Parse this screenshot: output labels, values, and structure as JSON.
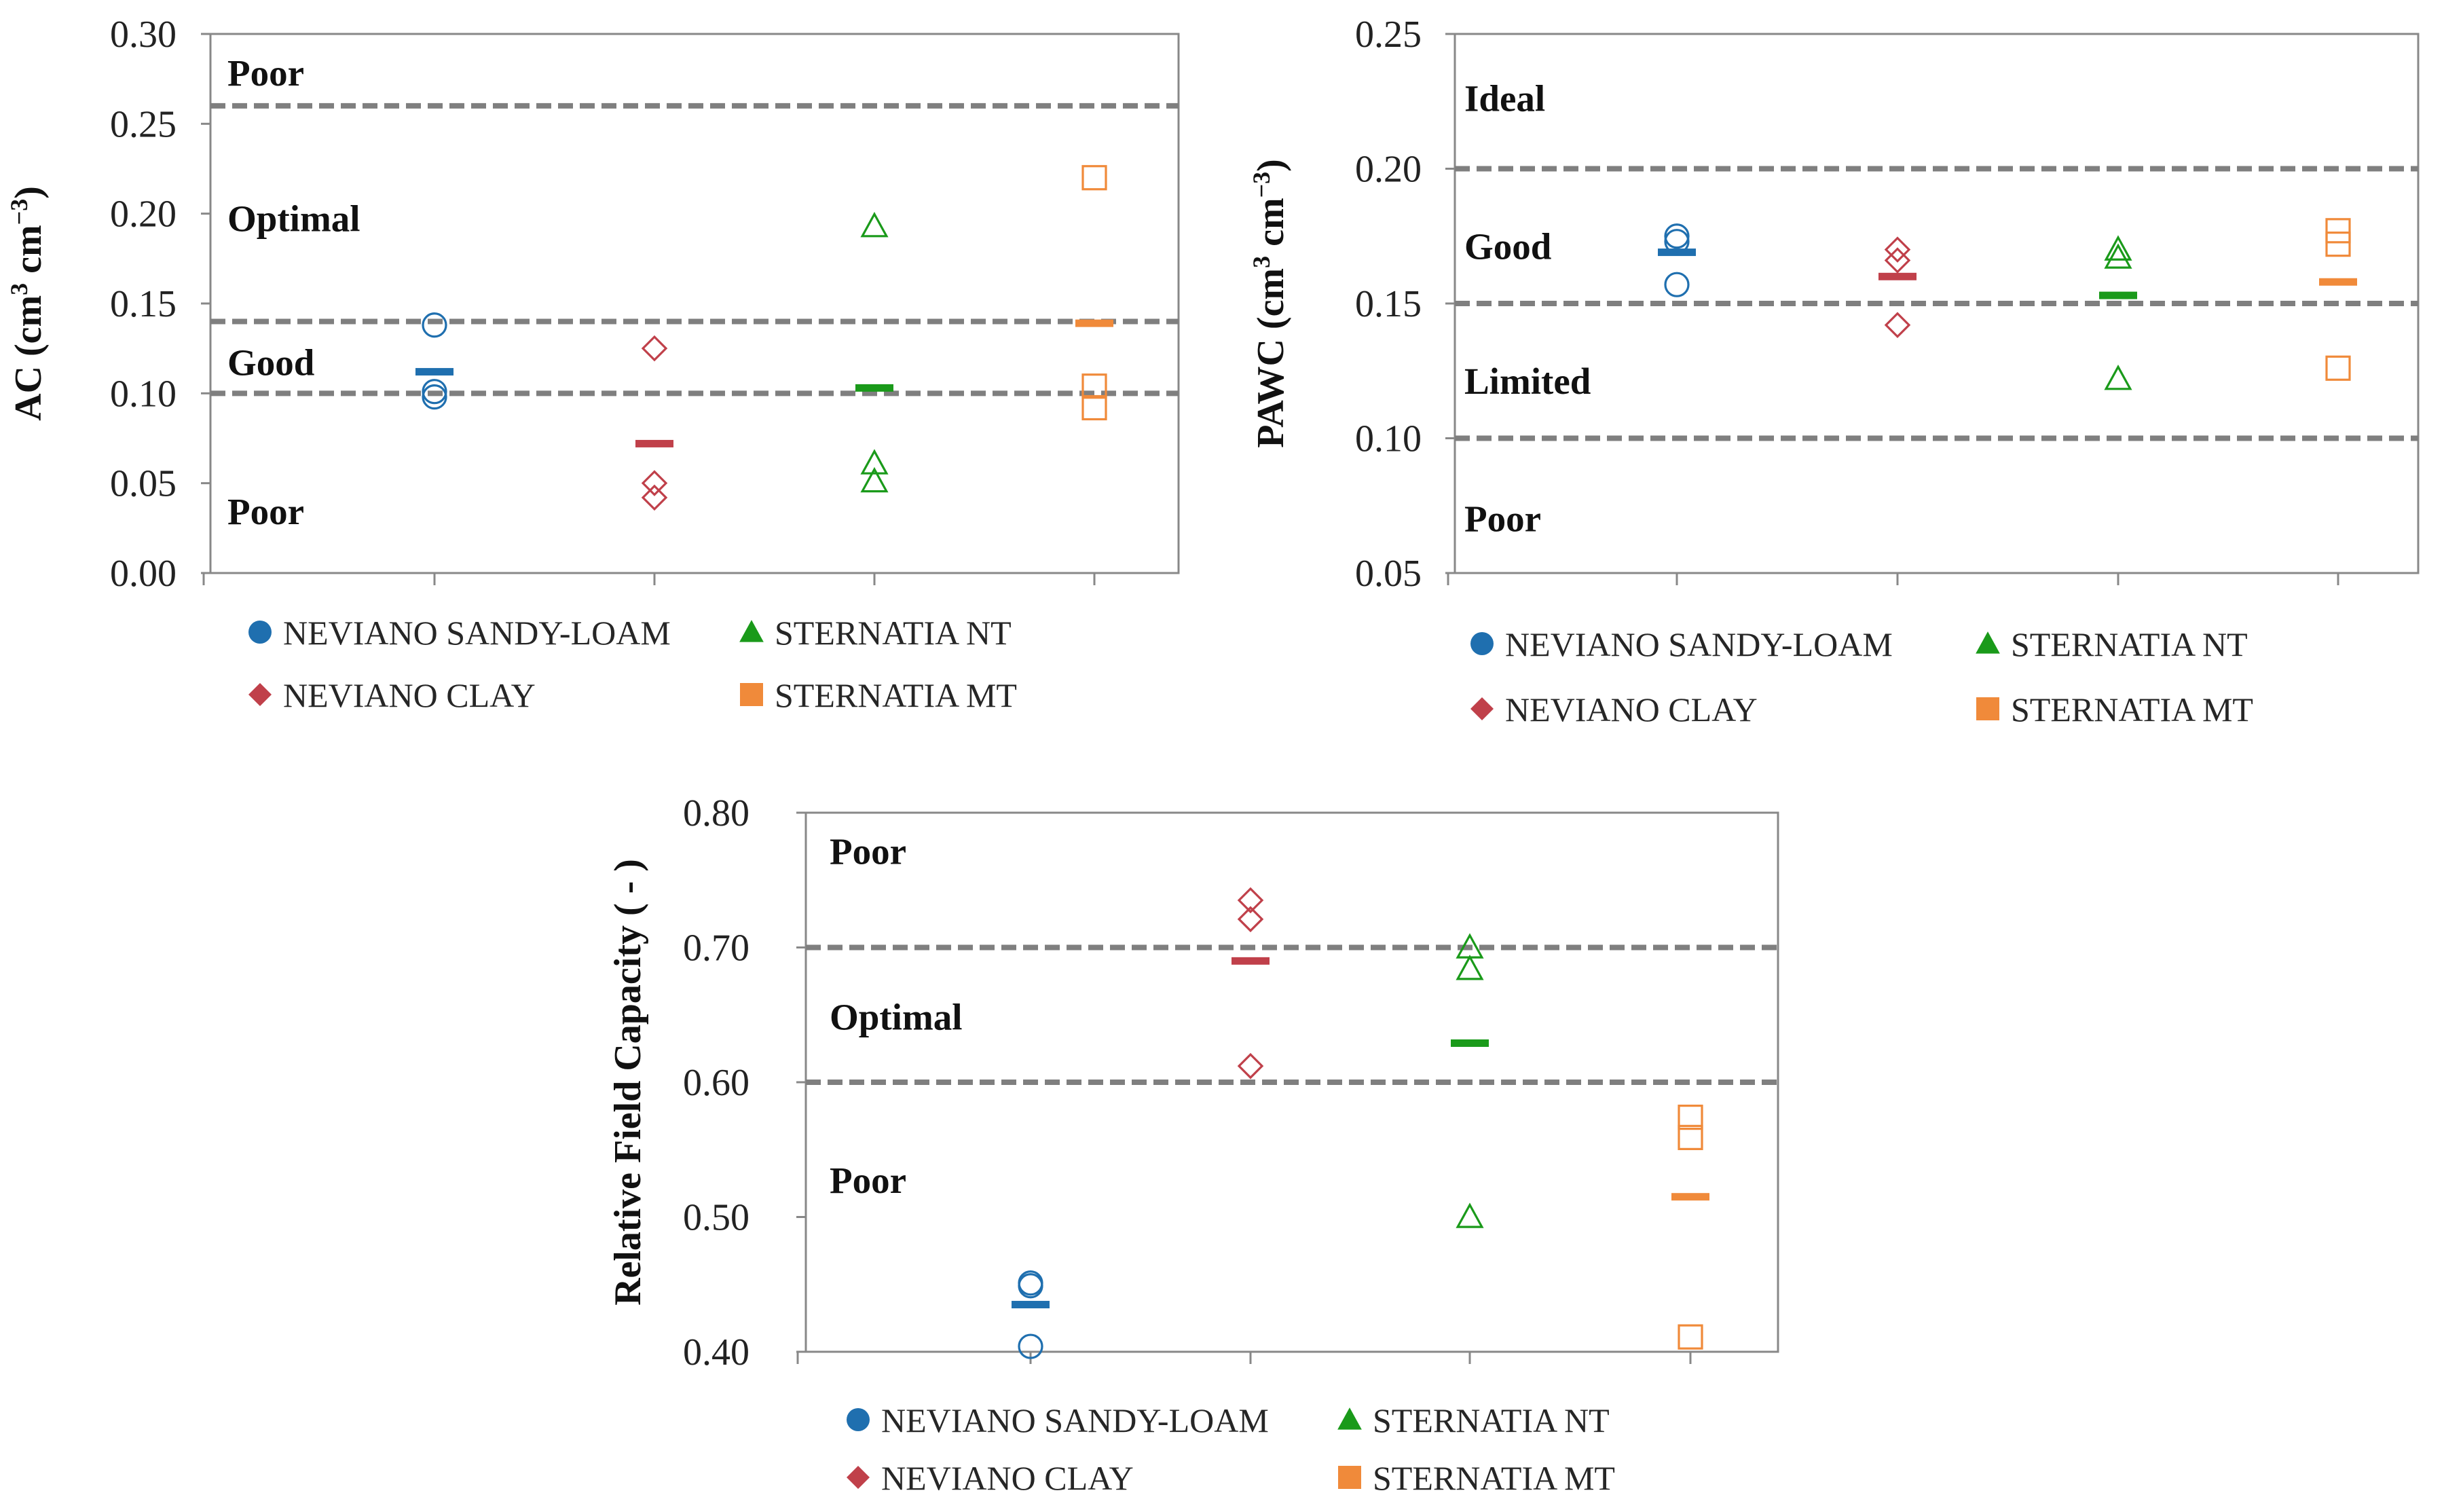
{
  "figure": {
    "colors": {
      "neviano_sandy_loam": "#1f6faf",
      "neviano_clay": "#c0404a",
      "sternatia_nt": "#1a9a1a",
      "sternatia_mt": "#f08a3a",
      "threshold": "#7f7f7f",
      "frame": "#888888"
    }
  },
  "chart_data": [
    {
      "id": "ac",
      "type": "scatter",
      "ylabel": "AC (cm³ cm⁻³)",
      "ylabel_parts": {
        "base": "AC (cm",
        "sup1": "3",
        "mid": " cm",
        "sup2": "−3",
        "end": ")"
      },
      "ylim": [
        0.0,
        0.3
      ],
      "ticks": [
        0.0,
        0.05,
        0.1,
        0.15,
        0.2,
        0.25,
        0.3
      ],
      "tick_labels": [
        "0.00",
        "0.05",
        "0.10",
        "0.15",
        "0.20",
        "0.25",
        "0.30"
      ],
      "categories": [
        "NEVIANO SANDY-LOAM",
        "NEVIANO CLAY",
        "STERNATIA NT",
        "STERNATIA MT"
      ],
      "thresholds": [
        0.26,
        0.14,
        0.1
      ],
      "zones": [
        {
          "label": "Poor",
          "y": 0.278
        },
        {
          "label": "Optimal",
          "y": 0.197
        },
        {
          "label": "Good",
          "y": 0.117
        },
        {
          "label": "Poor",
          "y": 0.034
        }
      ],
      "series": [
        {
          "name": "NEVIANO SANDY-LOAM",
          "marker": "circle",
          "color": "#1f6faf",
          "values": [
            0.138,
            0.101,
            0.098
          ],
          "mean": 0.112
        },
        {
          "name": "NEVIANO CLAY",
          "marker": "diamond",
          "color": "#c0404a",
          "values": [
            0.125,
            0.05,
            0.042
          ],
          "mean": 0.072
        },
        {
          "name": "STERNATIA NT",
          "marker": "triangle",
          "color": "#1a9a1a",
          "values": [
            0.193,
            0.061,
            0.051
          ],
          "mean": 0.103
        },
        {
          "name": "STERNATIA MT",
          "marker": "square",
          "color": "#f08a3a",
          "values": [
            0.22,
            0.104,
            0.092
          ],
          "mean": 0.139
        }
      ],
      "legend": [
        {
          "name": "NEVIANO SANDY-LOAM",
          "marker": "circle",
          "color": "#1f6faf"
        },
        {
          "name": "STERNATIA NT",
          "marker": "triangle",
          "color": "#1a9a1a"
        },
        {
          "name": "NEVIANO CLAY",
          "marker": "diamond",
          "color": "#c0404a"
        },
        {
          "name": "STERNATIA MT",
          "marker": "square",
          "color": "#f08a3a"
        }
      ]
    },
    {
      "id": "pawc",
      "type": "scatter",
      "ylabel": "PAWC (cm³ cm⁻³)",
      "ylabel_parts": {
        "base": "PAWC (cm",
        "sup1": "3",
        "mid": " cm",
        "sup2": "−3",
        "end": ")"
      },
      "ylim": [
        0.05,
        0.25
      ],
      "ticks": [
        0.05,
        0.1,
        0.15,
        0.2,
        0.25
      ],
      "tick_labels": [
        "0.05",
        "0.10",
        "0.15",
        "0.20",
        "0.25"
      ],
      "categories": [
        "NEVIANO SANDY-LOAM",
        "NEVIANO CLAY",
        "STERNATIA NT",
        "STERNATIA MT"
      ],
      "thresholds": [
        0.2,
        0.15,
        0.1
      ],
      "zones": [
        {
          "label": "Ideal",
          "y": 0.226
        },
        {
          "label": "Good",
          "y": 0.171
        },
        {
          "label": "Limited",
          "y": 0.121
        },
        {
          "label": "Poor",
          "y": 0.07
        }
      ],
      "series": [
        {
          "name": "NEVIANO SANDY-LOAM",
          "marker": "circle",
          "color": "#1f6faf",
          "values": [
            0.175,
            0.173,
            0.157
          ],
          "mean": 0.169
        },
        {
          "name": "NEVIANO CLAY",
          "marker": "diamond",
          "color": "#c0404a",
          "values": [
            0.17,
            0.166,
            0.142
          ],
          "mean": 0.16
        },
        {
          "name": "STERNATIA NT",
          "marker": "triangle",
          "color": "#1a9a1a",
          "values": [
            0.17,
            0.167,
            0.122
          ],
          "mean": 0.153
        },
        {
          "name": "STERNATIA MT",
          "marker": "square",
          "color": "#f08a3a",
          "values": [
            0.177,
            0.172,
            0.126
          ],
          "mean": 0.158
        }
      ],
      "legend": [
        {
          "name": "NEVIANO SANDY-LOAM",
          "marker": "circle",
          "color": "#1f6faf"
        },
        {
          "name": "STERNATIA NT",
          "marker": "triangle",
          "color": "#1a9a1a"
        },
        {
          "name": "NEVIANO CLAY",
          "marker": "diamond",
          "color": "#c0404a"
        },
        {
          "name": "STERNATIA MT",
          "marker": "square",
          "color": "#f08a3a"
        }
      ]
    },
    {
      "id": "rfc",
      "type": "scatter",
      "ylabel": "Relative Field Capacity ( - )",
      "ylabel_parts": {
        "base": "Relative Field Capacity ( - )",
        "sup1": "",
        "mid": "",
        "sup2": "",
        "end": ""
      },
      "ylim": [
        0.4,
        0.8
      ],
      "ticks": [
        0.4,
        0.5,
        0.6,
        0.7,
        0.8
      ],
      "tick_labels": [
        "0.40",
        "0.50",
        "0.60",
        "0.70",
        "0.80"
      ],
      "categories": [
        "NEVIANO SANDY-LOAM",
        "NEVIANO CLAY",
        "STERNATIA NT",
        "STERNATIA MT"
      ],
      "thresholds": [
        0.7,
        0.6
      ],
      "zones": [
        {
          "label": "Poor",
          "y": 0.771
        },
        {
          "label": "Optimal",
          "y": 0.648
        },
        {
          "label": "Poor",
          "y": 0.527
        }
      ],
      "series": [
        {
          "name": "NEVIANO SANDY-LOAM",
          "marker": "circle",
          "color": "#1f6faf",
          "values": [
            0.451,
            0.449,
            0.404
          ],
          "mean": 0.435
        },
        {
          "name": "NEVIANO CLAY",
          "marker": "diamond",
          "color": "#c0404a",
          "values": [
            0.735,
            0.721,
            0.612
          ],
          "mean": 0.69
        },
        {
          "name": "STERNATIA NT",
          "marker": "triangle",
          "color": "#1a9a1a",
          "values": [
            0.7,
            0.684,
            0.5
          ],
          "mean": 0.629
        },
        {
          "name": "STERNATIA MT",
          "marker": "square",
          "color": "#f08a3a",
          "values": [
            0.574,
            0.559,
            0.411
          ],
          "mean": 0.515
        }
      ],
      "legend": [
        {
          "name": "NEVIANO SANDY-LOAM",
          "marker": "circle",
          "color": "#1f6faf"
        },
        {
          "name": "STERNATIA NT",
          "marker": "triangle",
          "color": "#1a9a1a"
        },
        {
          "name": "NEVIANO CLAY",
          "marker": "diamond",
          "color": "#c0404a"
        },
        {
          "name": "STERNATIA MT",
          "marker": "square",
          "color": "#f08a3a"
        }
      ]
    }
  ]
}
